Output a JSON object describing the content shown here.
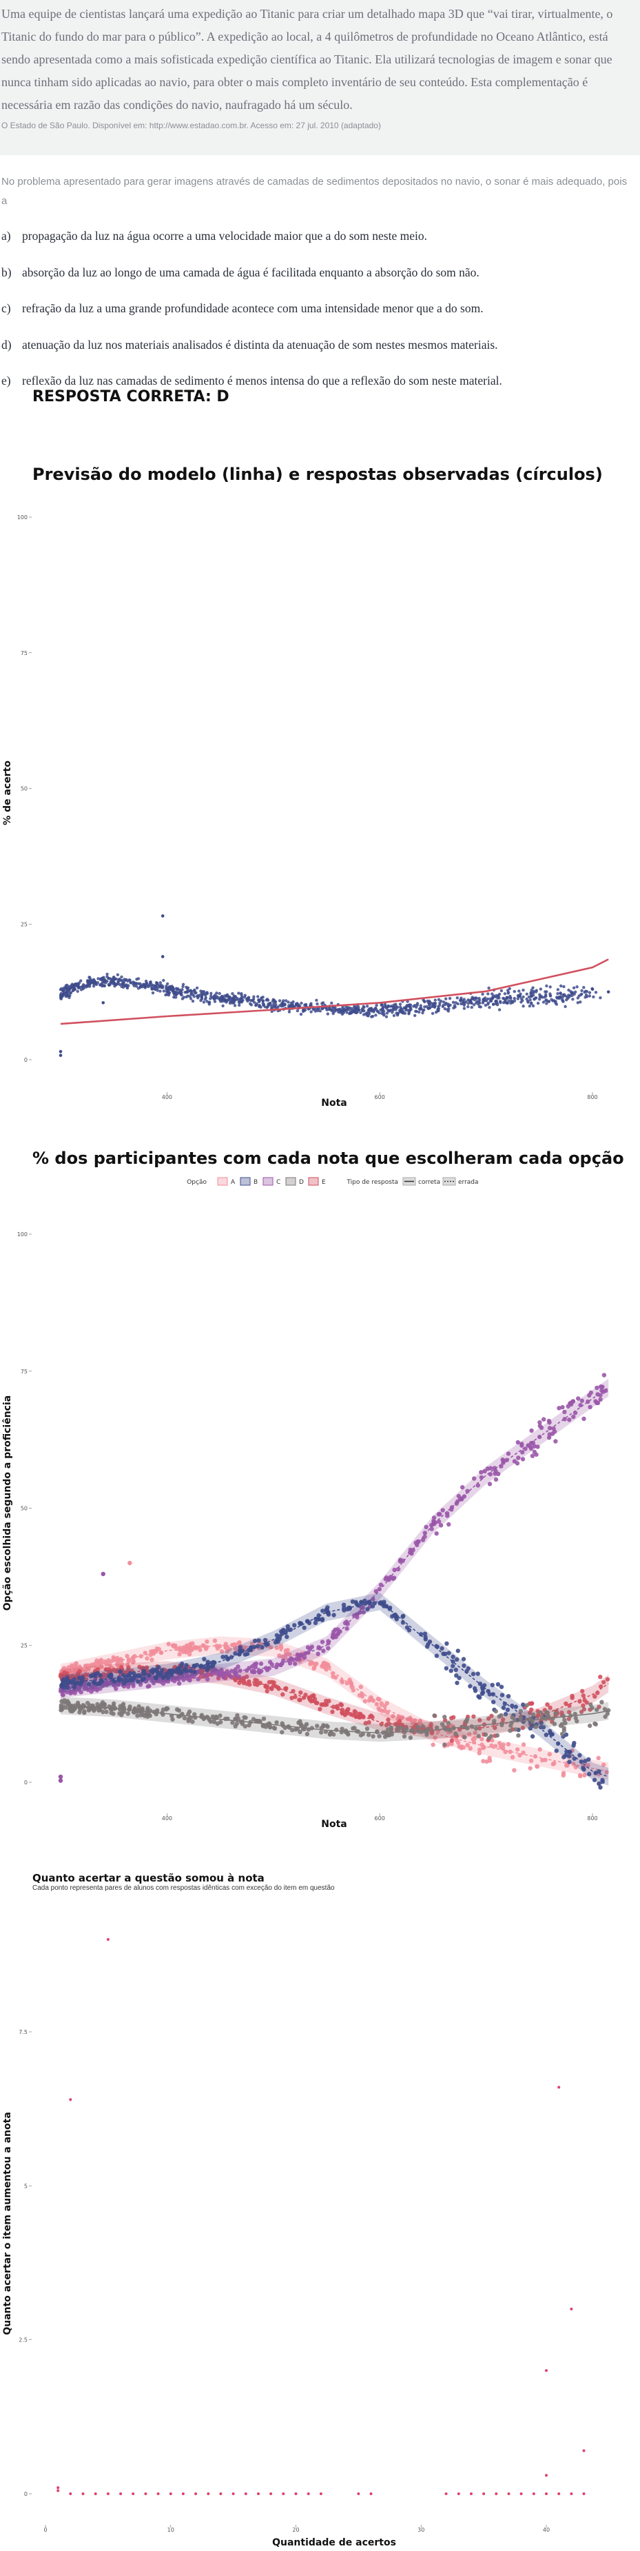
{
  "question": {
    "text": "Uma equipe de cientistas lançará uma expedição ao Titanic para criar um detalhado mapa 3D que “vai tirar, virtualmente, o Titanic do fundo do mar para o público”. A expedição ao local, a 4 quilômetros de profundidade no Oceano Atlântico, está sendo apresentada como a mais sofisticada expedição científica ao Titanic. Ela utilizará tecnologias de imagem e sonar que nunca tinham sido aplicadas ao navio, para obter o mais completo inventário de seu conteúdo. Esta complementação é necessária em razão das condições do navio, naufragado há um século.",
    "source": "O Estado de São Paulo. Disponível em: http://www.estadao.com.br. Acesso em: 27 jul. 2010 (adaptado)",
    "prompt": "No problema apresentado para gerar imagens através de camadas de sedimentos depositados no navio, o sonar é mais adequado, pois a",
    "options": [
      {
        "letter": "a)",
        "text": "propagação da luz na água ocorre a uma velocidade maior que a do som neste meio."
      },
      {
        "letter": "b)",
        "text": "absorção da luz ao longo de uma camada de água é facilitada enquanto a absorção do som não."
      },
      {
        "letter": "c)",
        "text": "refração da luz a uma grande profundidade acontece com uma intensidade menor que a do som."
      },
      {
        "letter": "d)",
        "text": "atenuação da luz nos materiais analisados é distinta da atenuação de som nestes mesmos materiais."
      },
      {
        "letter": "e)",
        "text": "reflexão da luz nas camadas de sedimento é menos intensa do que a reflexão do som neste material."
      }
    ],
    "answer": "RESPOSTA CORRETA: D"
  },
  "colors": {
    "A": "#f28e9b",
    "B": "#3f4c8c",
    "C": "#9a56a8",
    "D": "#7d7778",
    "E": "#d1505e",
    "model_line": "#d1505e",
    "observed": "#3f4c8c",
    "points3": "#e0406a"
  },
  "chart_data": [
    {
      "type": "scatter",
      "title": "Previsão do modelo (linha) e respostas observadas (círculos)",
      "xlabel": "Nota",
      "ylabel": "% de acerto",
      "x_ticks": [
        400,
        600,
        800
      ],
      "y_ticks": [
        0,
        25,
        50,
        75,
        100
      ],
      "xlim": [
        270,
        820
      ],
      "ylim": [
        0,
        100
      ],
      "grid": false,
      "model_line": {
        "x": [
          300,
          400,
          500,
          600,
          700,
          800,
          815
        ],
        "y": [
          6.6,
          8.0,
          9.2,
          10.5,
          12.6,
          17.0,
          18.5
        ]
      },
      "observed_trend": {
        "x": [
          300,
          320,
          340,
          360,
          380,
          400,
          420,
          440,
          460,
          480,
          500,
          520,
          540,
          560,
          580,
          600,
          620,
          640,
          660,
          680,
          700,
          720,
          740,
          760,
          780,
          800,
          815
        ],
        "y": [
          12,
          14,
          14.5,
          14.3,
          13.8,
          13,
          12.2,
          11.6,
          11.1,
          10.7,
          10.3,
          9.9,
          9.6,
          9.3,
          9.1,
          9.0,
          9.3,
          9.7,
          10.2,
          10.6,
          11.0,
          11.3,
          11.5,
          11.6,
          11.7,
          11.8,
          12.0
        ]
      },
      "outliers": [
        {
          "x": 300,
          "y": 1.5
        },
        {
          "x": 300,
          "y": 0.8
        },
        {
          "x": 396,
          "y": 26.5
        },
        {
          "x": 396,
          "y": 19
        },
        {
          "x": 340,
          "y": 10.5
        },
        {
          "x": 800,
          "y": 13
        },
        {
          "x": 815,
          "y": 12.5
        }
      ]
    },
    {
      "type": "scatter",
      "title": "% dos participantes com cada nota que escolheram cada opção",
      "xlabel": "Nota",
      "ylabel": "Opção escolhida segundo a proficiência",
      "x_ticks": [
        400,
        600,
        800
      ],
      "y_ticks": [
        0,
        25,
        50,
        75,
        100
      ],
      "xlim": [
        270,
        820
      ],
      "ylim": [
        0,
        100
      ],
      "grid": false,
      "legend": {
        "option_label": "Opção",
        "options": [
          "A",
          "B",
          "C",
          "D",
          "E"
        ],
        "type_label": "Tipo de resposta",
        "types": [
          "correta",
          "errada"
        ]
      },
      "series": [
        {
          "name": "A",
          "x": [
            300,
            350,
            400,
            450,
            500,
            550,
            600,
            650,
            700,
            750,
            800,
            815
          ],
          "y": [
            20,
            22,
            24,
            25,
            24.5,
            21,
            14,
            9,
            6.5,
            4.5,
            2.5,
            2
          ]
        },
        {
          "name": "B",
          "x": [
            300,
            350,
            400,
            450,
            500,
            550,
            600,
            650,
            700,
            750,
            800,
            815
          ],
          "y": [
            18,
            19,
            20,
            22,
            26,
            31,
            33,
            25,
            17,
            10,
            2,
            1
          ]
        },
        {
          "name": "C",
          "x": [
            300,
            350,
            400,
            450,
            500,
            550,
            600,
            650,
            700,
            750,
            800,
            815
          ],
          "y": [
            17,
            18,
            19,
            20,
            21,
            25,
            35,
            47,
            56,
            63,
            70,
            72
          ]
        },
        {
          "name": "D",
          "x": [
            300,
            350,
            400,
            450,
            500,
            550,
            600,
            650,
            700,
            750,
            800,
            815
          ],
          "y": [
            14,
            13.5,
            12.5,
            11.5,
            10.5,
            9.5,
            9,
            9.5,
            10.5,
            11.5,
            12.5,
            13
          ]
        },
        {
          "name": "E",
          "x": [
            300,
            350,
            400,
            450,
            500,
            550,
            600,
            650,
            700,
            750,
            800,
            815
          ],
          "y": [
            19,
            20,
            20.5,
            19.5,
            17.5,
            14,
            11,
            9.5,
            10,
            12,
            16,
            18
          ]
        }
      ],
      "outliers": [
        {
          "x": 340,
          "y": 38
        },
        {
          "x": 365,
          "y": 40
        },
        {
          "x": 300,
          "y": 1
        },
        {
          "x": 300,
          "y": 0.3
        }
      ]
    },
    {
      "type": "scatter",
      "title": "Quanto acertar a questão somou à nota",
      "subtitle": "Cada ponto representa pares de alunos com respostas idênticas com exceção do item em questão",
      "xlabel": "Quantidade de acertos",
      "ylabel": "Quanto acertar o item aumentou a anota",
      "x_ticks": [
        0,
        10,
        20,
        30,
        40
      ],
      "y_ticks": [
        0.0,
        2.5,
        5.0,
        7.5
      ],
      "xlim": [
        -0.5,
        44.5
      ],
      "ylim": [
        -0.2,
        9.2
      ],
      "grid": false,
      "points": [
        {
          "x": 1,
          "y": 0.05
        },
        {
          "x": 2,
          "y": 0
        },
        {
          "x": 3,
          "y": 0
        },
        {
          "x": 4,
          "y": 0
        },
        {
          "x": 5,
          "y": 0
        },
        {
          "x": 6,
          "y": 0
        },
        {
          "x": 7,
          "y": 0
        },
        {
          "x": 8,
          "y": 0
        },
        {
          "x": 9,
          "y": 0
        },
        {
          "x": 10,
          "y": 0
        },
        {
          "x": 11,
          "y": 0
        },
        {
          "x": 12,
          "y": 0
        },
        {
          "x": 13,
          "y": 0
        },
        {
          "x": 14,
          "y": 0
        },
        {
          "x": 15,
          "y": 0
        },
        {
          "x": 16,
          "y": 0
        },
        {
          "x": 17,
          "y": 0
        },
        {
          "x": 18,
          "y": 0
        },
        {
          "x": 19,
          "y": 0
        },
        {
          "x": 20,
          "y": 0
        },
        {
          "x": 21,
          "y": 0
        },
        {
          "x": 22,
          "y": 0
        },
        {
          "x": 25,
          "y": 0
        },
        {
          "x": 26,
          "y": 0
        },
        {
          "x": 32,
          "y": 0
        },
        {
          "x": 33,
          "y": 0
        },
        {
          "x": 34,
          "y": 0
        },
        {
          "x": 35,
          "y": 0
        },
        {
          "x": 36,
          "y": 0
        },
        {
          "x": 37,
          "y": 0
        },
        {
          "x": 38,
          "y": 0
        },
        {
          "x": 39,
          "y": 0
        },
        {
          "x": 40,
          "y": 0
        },
        {
          "x": 41,
          "y": 0
        },
        {
          "x": 42,
          "y": 0
        },
        {
          "x": 43,
          "y": 0
        },
        {
          "x": 2,
          "y": 6.4
        },
        {
          "x": 5,
          "y": 9.0
        },
        {
          "x": 40,
          "y": 2.0
        },
        {
          "x": 40,
          "y": 0.3
        },
        {
          "x": 41,
          "y": 6.6
        },
        {
          "x": 42,
          "y": 3.0
        },
        {
          "x": 43,
          "y": 0.7
        },
        {
          "x": 1,
          "y": 0.1
        }
      ]
    }
  ]
}
